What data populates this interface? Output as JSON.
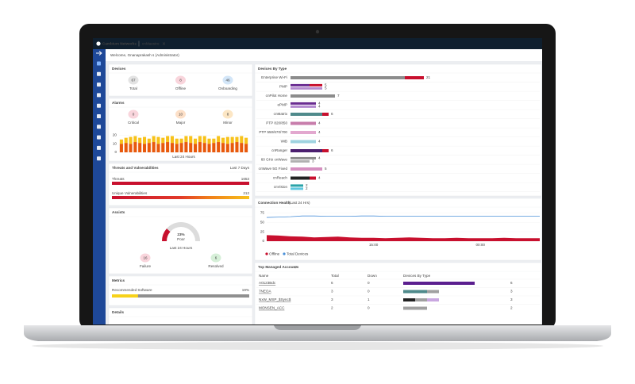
{
  "header": {
    "brand": "Cambium Networks",
    "product": "cnMaestro",
    "edition": "X"
  },
  "welcome": "Welcome, Gnanaprakash s (Administrator)",
  "devices": {
    "title": "Devices",
    "stats": [
      {
        "value": 67,
        "label": "Total"
      },
      {
        "value": 8,
        "label": "Offline"
      },
      {
        "value": 46,
        "label": "Onboarding"
      }
    ]
  },
  "alarms": {
    "title": "Alarms",
    "stats": [
      {
        "value": 0,
        "label": "Critical"
      },
      {
        "value": 10,
        "label": "Major"
      },
      {
        "value": 8,
        "label": "Minor"
      }
    ],
    "chart": {
      "type": "stacked-bar",
      "ylim": [
        0,
        25
      ],
      "yticks": [
        0,
        10,
        20
      ],
      "caption": "Last 24 Hours",
      "series": [
        {
          "color": "#e8590c",
          "values": [
            10,
            11,
            10,
            12,
            11,
            10,
            11,
            12,
            10,
            11,
            12,
            11,
            10,
            11,
            12,
            11,
            10,
            12,
            11,
            10,
            11,
            12,
            11,
            10,
            11,
            12,
            11,
            10
          ]
        },
        {
          "color": "#f7c21a",
          "values": [
            5,
            6,
            8,
            7,
            6,
            8,
            5,
            7,
            8,
            6,
            7,
            8,
            6,
            5,
            7,
            8,
            6,
            7,
            8,
            6,
            5,
            7,
            6,
            8,
            7,
            6,
            8,
            7
          ]
        }
      ]
    }
  },
  "threats": {
    "title": "Threats and Vulnerabilities",
    "period": "Last 7 Days",
    "rows": [
      {
        "label": "Threats",
        "value": 1653
      },
      {
        "label": "Unique Vulnerabilities",
        "value": 212
      }
    ]
  },
  "assists": {
    "title": "Assists",
    "gauge": {
      "value": 23,
      "value_label": "23%",
      "status": "Poor",
      "caption": "Last 24 Hours"
    },
    "stats": [
      {
        "value": 16,
        "label": "Failure"
      },
      {
        "value": 6,
        "label": "Resolved"
      }
    ]
  },
  "metrics": {
    "title": "Metrics",
    "label": "Recommended Software",
    "value": 19,
    "value_label": "19%"
  },
  "details": {
    "title": "Details"
  },
  "devices_by_type": {
    "title": "Devices By Type",
    "rows": [
      {
        "name": "Enterprise Wi-Fi",
        "bars": [
          {
            "segments": [
              {
                "value": 18,
                "color": "#8c8c8c"
              },
              {
                "value": 3,
                "color": "#c8102e"
              }
            ],
            "total": 21
          }
        ]
      },
      {
        "name": "PMP",
        "bars": [
          {
            "segments": [
              {
                "value": 3,
                "color": "#6a2c91"
              },
              {
                "value": 2,
                "color": "#c8102e"
              }
            ],
            "total": 5
          },
          {
            "segments": [
              {
                "value": 5,
                "color": "#b48ad0"
              }
            ],
            "total": 5
          }
        ]
      },
      {
        "name": "cnPilot Home",
        "bars": [
          {
            "segments": [
              {
                "value": 7,
                "color": "#8c8c8c"
              }
            ],
            "total": 7
          }
        ]
      },
      {
        "name": "ePMP",
        "bars": [
          {
            "segments": [
              {
                "value": 4,
                "color": "#6a2c91"
              }
            ],
            "total": 4
          },
          {
            "segments": [
              {
                "value": 4,
                "color": "#b48ad0"
              }
            ],
            "total": 4
          }
        ]
      },
      {
        "name": "cnMatrix",
        "bars": [
          {
            "segments": [
              {
                "value": 5,
                "color": "#4f8a8b"
              },
              {
                "value": 1,
                "color": "#c8102e"
              }
            ],
            "total": 6
          }
        ]
      },
      {
        "name": "PTP 820/850",
        "bars": [
          {
            "segments": [
              {
                "value": 4,
                "color": "#c77dab"
              }
            ],
            "total": 4
          }
        ]
      },
      {
        "name": "PTP 550/670/700",
        "bars": [
          {
            "segments": [
              {
                "value": 4,
                "color": "#e2a8cf"
              }
            ],
            "total": 4
          }
        ]
      },
      {
        "name": "WiB",
        "bars": [
          {
            "segments": [
              {
                "value": 4,
                "color": "#9fd3e0"
              }
            ],
            "total": 4
          }
        ]
      },
      {
        "name": "cnRanger",
        "bars": [
          {
            "segments": [
              {
                "value": 5,
                "color": "#4b1f6f"
              },
              {
                "value": 1,
                "color": "#c8102e"
              }
            ],
            "total": 6
          }
        ]
      },
      {
        "name": "60 GHz cnWave",
        "bars": [
          {
            "segments": [
              {
                "value": 4,
                "color": "#8c8c8c"
              }
            ],
            "total": 4
          },
          {
            "segments": [
              {
                "value": 3,
                "color": "#b0b0b0"
              }
            ],
            "total": 3
          }
        ]
      },
      {
        "name": "cnWave 5G Fixed",
        "bars": [
          {
            "segments": [
              {
                "value": 5,
                "color": "#d58fc0"
              }
            ],
            "total": 5
          }
        ]
      },
      {
        "name": "cnReach",
        "bars": [
          {
            "segments": [
              {
                "value": 3,
                "color": "#222222"
              },
              {
                "value": 1,
                "color": "#c8102e"
              }
            ],
            "total": 4
          }
        ]
      },
      {
        "name": "cnVision",
        "bars": [
          {
            "segments": [
              {
                "value": 2,
                "color": "#2aa3a8"
              }
            ],
            "total": 2
          },
          {
            "segments": [
              {
                "value": 2,
                "color": "#5fc7e0"
              }
            ],
            "total": 2
          }
        ]
      }
    ]
  },
  "connection_health": {
    "title": "Connection Health",
    "subtitle": "(Last 24 Hrs)",
    "chart": {
      "type": "line",
      "ylim": [
        0,
        80
      ],
      "yticks": [
        0,
        25,
        50,
        75
      ],
      "categories": [
        null,
        null,
        null,
        null,
        null,
        null,
        null,
        null,
        null,
        "15:00",
        null,
        null,
        null,
        null,
        null,
        null,
        null,
        null,
        "00:00",
        null,
        null,
        null,
        null,
        null
      ],
      "series": [
        {
          "name": "Offline",
          "color": "#c8102e",
          "values": [
            16,
            15,
            13,
            12,
            10,
            11,
            12,
            10,
            9,
            9,
            8,
            9,
            10,
            9,
            8,
            8,
            9,
            8,
            8,
            8,
            9,
            8,
            8,
            8
          ]
        },
        {
          "name": "Total Devices",
          "color": "#4a90d9",
          "values": [
            63,
            64,
            65,
            67,
            67,
            66,
            66,
            66,
            67,
            67,
            66,
            66,
            66,
            66,
            66,
            66,
            66,
            66,
            66,
            66,
            66,
            66,
            66,
            66
          ]
        }
      ]
    }
  },
  "top_accounts": {
    "title": "Top Managed Accounts",
    "columns": [
      "Name",
      "Total",
      "Down",
      "Devices By Type"
    ],
    "rows": [
      {
        "name": "A0123Bdc",
        "total": 6,
        "down": 0,
        "segments": [
          {
            "value": 6,
            "color": "#5b1f8f"
          }
        ]
      },
      {
        "name": "7NEOA",
        "total": 3,
        "down": 0,
        "segments": [
          {
            "value": 2,
            "color": "#4f8a8b"
          },
          {
            "value": 1,
            "color": "#a0a0a0"
          }
        ]
      },
      {
        "name": "NxW_MSP_$Sync$",
        "total": 3,
        "down": 1,
        "segments": [
          {
            "value": 1,
            "color": "#222222"
          },
          {
            "value": 1,
            "color": "#a0a0a0"
          },
          {
            "value": 1,
            "color": "#c9a7e0"
          }
        ]
      },
      {
        "name": "MONSEN_ACC",
        "total": 2,
        "down": 0,
        "segments": [
          {
            "value": 2,
            "color": "#a0a0a0"
          }
        ]
      }
    ]
  }
}
